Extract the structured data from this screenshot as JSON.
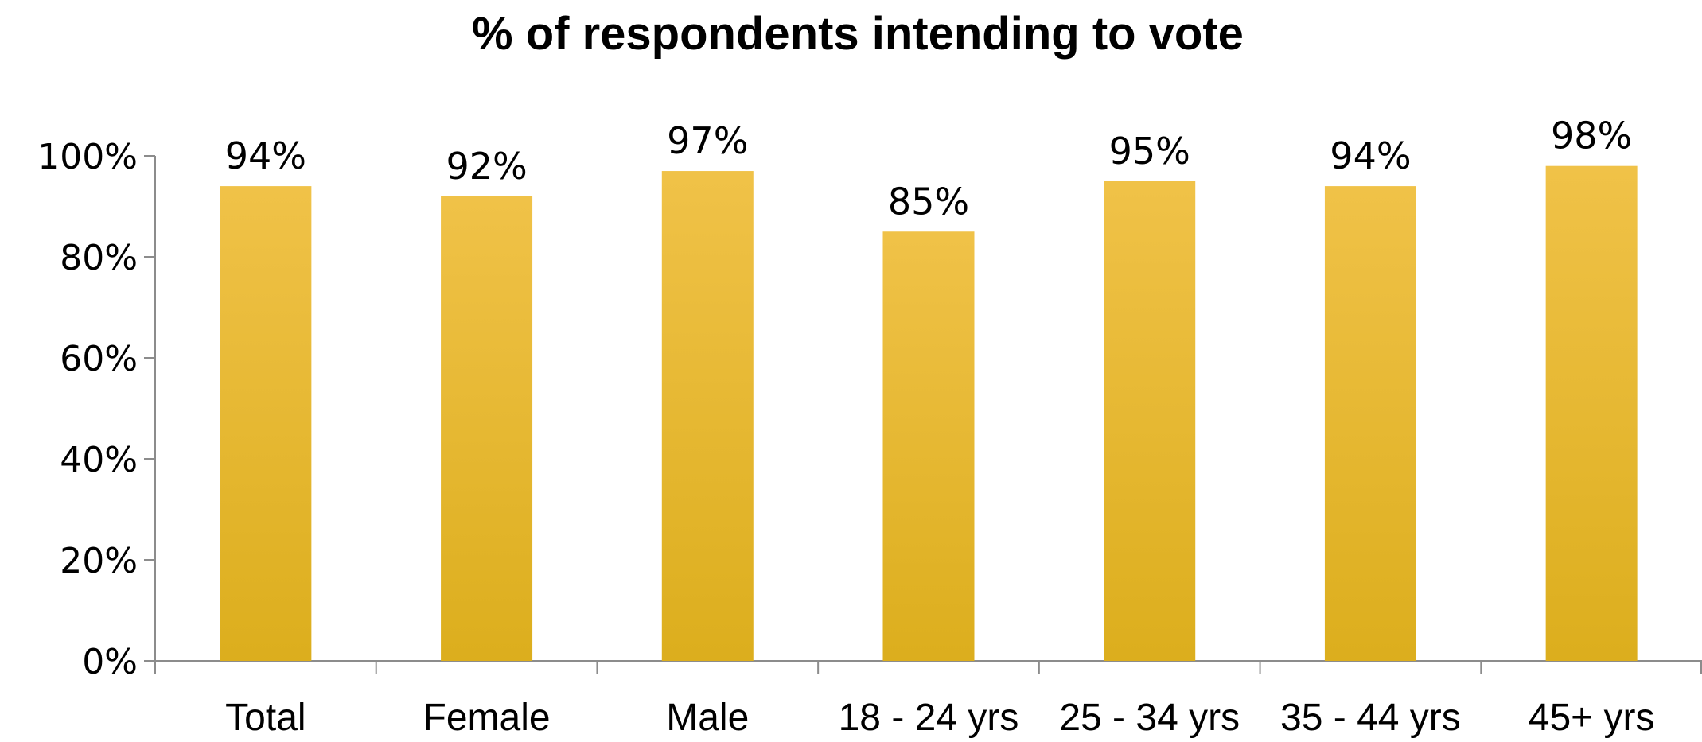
{
  "chart_data": {
    "type": "bar",
    "title": "% of respondents intending to vote",
    "xlabel": "",
    "ylabel": "",
    "categories": [
      "Total",
      "Female",
      "Male",
      "18 - 24 yrs",
      "25 - 34 yrs",
      "35 - 44 yrs",
      "45+ yrs"
    ],
    "values": [
      94,
      92,
      97,
      85,
      95,
      94,
      98
    ],
    "data_labels": [
      "94%",
      "92%",
      "97%",
      "85%",
      "95%",
      "94%",
      "98%"
    ],
    "ylim": [
      0,
      100
    ],
    "yticks": [
      0,
      20,
      40,
      60,
      80,
      100
    ],
    "ytick_labels": [
      "0%",
      "20%",
      "40%",
      "60%",
      "80%",
      "100%"
    ],
    "grid": false,
    "legend": "none",
    "bar_color_top": "#f0c248",
    "bar_color_bottom": "#dcae1d"
  }
}
